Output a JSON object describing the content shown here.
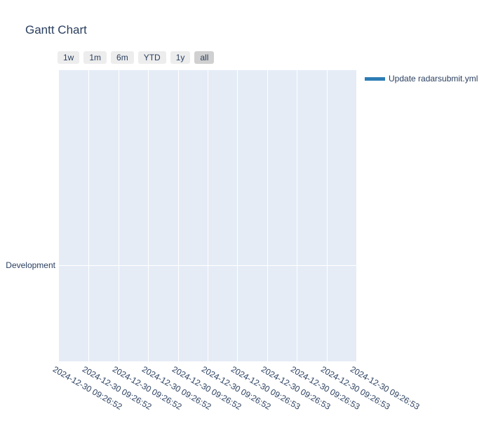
{
  "title": "Gantt Chart",
  "colors": {
    "text": "#2a3f5f",
    "plot_background": "#e5ecf6",
    "gridline": "#ffffff",
    "button_background": "#ededed",
    "button_active_background": "#d0d0d0",
    "task_color": "#2d7cb5"
  },
  "range_selector": {
    "buttons": [
      {
        "label": "1w",
        "active": false
      },
      {
        "label": "1m",
        "active": false
      },
      {
        "label": "6m",
        "active": false
      },
      {
        "label": "YTD",
        "active": false
      },
      {
        "label": "1y",
        "active": false
      },
      {
        "label": "all",
        "active": true
      }
    ]
  },
  "legend": {
    "position": "right",
    "items": [
      {
        "label": "Update radarsubmit.yml",
        "color": "#2d7cb5",
        "swatch": "line"
      }
    ]
  },
  "chart_data": {
    "type": "gantt",
    "title": "Gantt Chart",
    "y_categories": [
      "Development"
    ],
    "series": [
      {
        "name": "Update radarsubmit.yml",
        "row": "Development",
        "color": "#2d7cb5"
      }
    ],
    "x_ticks": [
      "2024-12-30 09:26:52",
      "2024-12-30 09:26:52",
      "2024-12-30 09:26:52",
      "2024-12-30 09:26:52",
      "2024-12-30 09:26:52",
      "2024-12-30 09:26:52",
      "2024-12-30 09:26:53",
      "2024-12-30 09:26:53",
      "2024-12-30 09:26:53",
      "2024-12-30 09:26:53",
      "2024-12-30 09:26:53"
    ],
    "x_tick_angle": 30,
    "grid": true,
    "legend_position": "right"
  }
}
